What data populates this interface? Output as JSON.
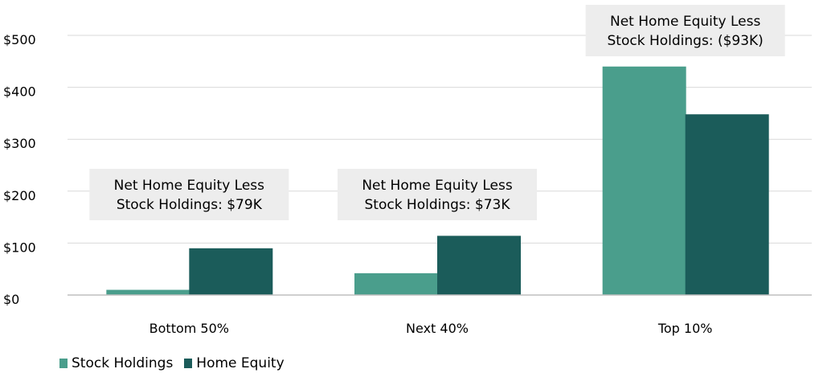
{
  "chart_data": {
    "type": "bar",
    "categories": [
      "Bottom 50%",
      "Next 40%",
      "Top 10%"
    ],
    "series": [
      {
        "name": "Stock Holdings",
        "values": [
          10,
          42,
          440
        ],
        "color": "#4a9e8c"
      },
      {
        "name": "Home Equity",
        "values": [
          90,
          114,
          348
        ],
        "color": "#1b5c5a"
      }
    ],
    "ylim": [
      0,
      500
    ],
    "y_ticks": [
      0,
      100,
      200,
      300,
      400,
      500
    ],
    "y_tick_labels": [
      "$0",
      "$100",
      "$200",
      "$300",
      "$400",
      "$500"
    ],
    "grid": true,
    "legend_position": "bottom-left",
    "annotations": [
      {
        "category": "Bottom 50%",
        "lines": [
          "Net Home Equity Less",
          "Stock Holdings: $79K"
        ]
      },
      {
        "category": "Next 40%",
        "lines": [
          "Net Home Equity Less",
          "Stock Holdings: $73K"
        ]
      },
      {
        "category": "Top 10%",
        "lines": [
          "Net Home Equity Less",
          "Stock Holdings: ($93K)"
        ]
      }
    ],
    "annotation_box_color": "#ededed",
    "gridline_color": "#d9d9d9"
  }
}
